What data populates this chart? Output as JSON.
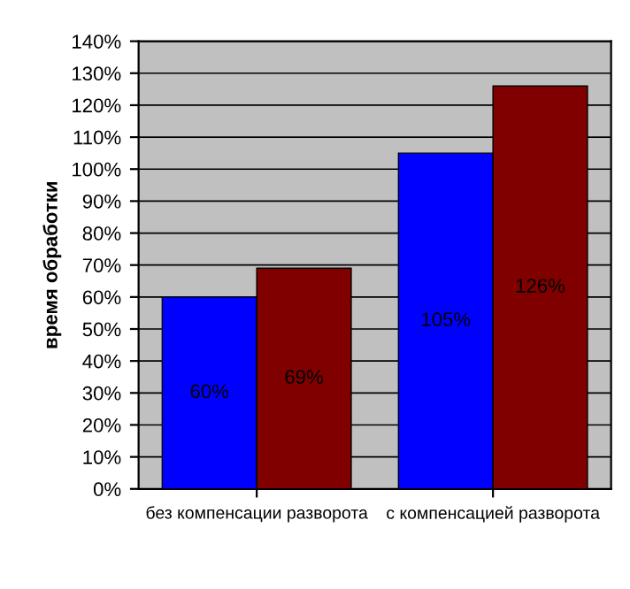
{
  "chart_data": {
    "type": "bar",
    "ylabel": "время обработки",
    "categories": [
      "без компенсации разворота",
      "с компенсацией разворота"
    ],
    "series": [
      {
        "color": "#0000ff",
        "values": [
          60,
          105
        ],
        "value_labels": [
          "60%",
          "105%"
        ]
      },
      {
        "color": "#800000",
        "values": [
          69,
          126
        ],
        "value_labels": [
          "69%",
          "126%"
        ]
      }
    ],
    "ylim": [
      0,
      140
    ],
    "yticks": [
      {
        "value": 0,
        "label": "0%"
      },
      {
        "value": 10,
        "label": "10%"
      },
      {
        "value": 20,
        "label": "20%"
      },
      {
        "value": 30,
        "label": "30%"
      },
      {
        "value": 40,
        "label": "40%"
      },
      {
        "value": 50,
        "label": "50%"
      },
      {
        "value": 60,
        "label": "60%"
      },
      {
        "value": 70,
        "label": "70%"
      },
      {
        "value": 80,
        "label": "80%"
      },
      {
        "value": 90,
        "label": "90%"
      },
      {
        "value": 100,
        "label": "100%"
      },
      {
        "value": 110,
        "label": "110%"
      },
      {
        "value": 120,
        "label": "120%"
      },
      {
        "value": 130,
        "label": "130%"
      },
      {
        "value": 140,
        "label": "140%"
      }
    ],
    "grid": "y"
  }
}
